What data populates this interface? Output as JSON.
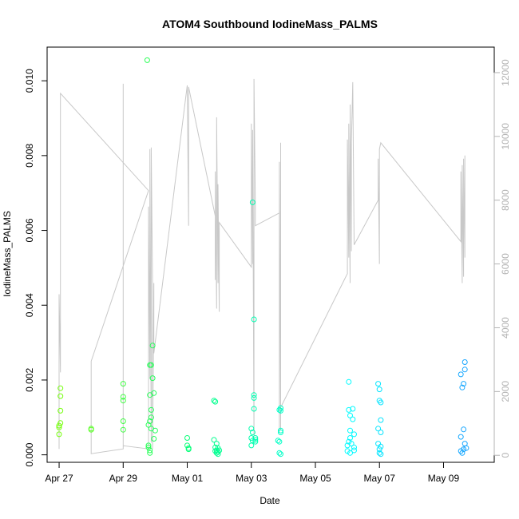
{
  "chart_data": {
    "type": "scatter",
    "title": "ATOM4 Southbound IodineMass_PALMS",
    "xlabel": "Date",
    "ylabel": "IodineMass_PALMS",
    "xlim": [
      "2017-04-26T15:00",
      "2017-05-10T14:00"
    ],
    "ylim": [
      -0.0002,
      0.0109
    ],
    "x_ticks": [
      "Apr 27",
      "Apr 29",
      "May 01",
      "May 03",
      "May 05",
      "May 07",
      "May 09"
    ],
    "y_ticks": [
      "0.000",
      "0.002",
      "0.004",
      "0.006",
      "0.008",
      "0.010"
    ],
    "y2_ticks": [
      "0",
      "2000",
      "4000",
      "6000",
      "8000",
      "10000",
      "12000"
    ],
    "y2lim": [
      -220,
      12800
    ],
    "y2_color": "#b3b3b3",
    "series": [
      {
        "marker": "open-circle",
        "color_gradient": [
          "#7FFF00",
          "#00FF7F",
          "#00FFFF",
          "#1E90FF"
        ],
        "points": [
          [
            "2017-04-27T00:00",
            0.00055
          ],
          [
            "2017-04-27T00:00",
            0.00073
          ],
          [
            "2017-04-27T00:00",
            0.00078
          ],
          [
            "2017-04-27T01:00",
            0.00085
          ],
          [
            "2017-04-27T01:00",
            0.00118
          ],
          [
            "2017-04-27T01:00",
            0.00157
          ],
          [
            "2017-04-27T01:00",
            0.00178
          ],
          [
            "2017-04-28T00:00",
            0.00067
          ],
          [
            "2017-04-28T00:00",
            0.0007
          ],
          [
            "2017-04-29T00:00",
            0.00067
          ],
          [
            "2017-04-29T00:00",
            0.0009
          ],
          [
            "2017-04-29T00:00",
            0.00145
          ],
          [
            "2017-04-29T00:00",
            0.00155
          ],
          [
            "2017-04-29T00:00",
            0.0019
          ],
          [
            "2017-04-29T19:00",
            0.0002
          ],
          [
            "2017-04-29T19:00",
            0.00025
          ],
          [
            "2017-04-29T19:00",
            0.0008
          ],
          [
            "2017-04-29T20:00",
            0.0009
          ],
          [
            "2017-04-29T20:00",
            0.00012
          ],
          [
            "2017-04-29T20:00",
            5e-05
          ],
          [
            "2017-04-29T20:00",
            0.0016
          ],
          [
            "2017-04-29T20:00",
            0.0024
          ],
          [
            "2017-04-29T21:00",
            0.0012
          ],
          [
            "2017-04-29T21:00",
            0.001
          ],
          [
            "2017-04-29T21:00",
            0.0007
          ],
          [
            "2017-04-29T21:00",
            0.0024
          ],
          [
            "2017-04-29T22:00",
            0.00205
          ],
          [
            "2017-04-29T22:00",
            0.00292
          ],
          [
            "2017-04-29T23:00",
            0.00165
          ],
          [
            "2017-04-29T23:00",
            0.00043
          ],
          [
            "2017-04-29T18:00",
            0.01055
          ],
          [
            "2017-04-30T00:00",
            0.00065
          ],
          [
            "2017-05-01T00:00",
            0.00045
          ],
          [
            "2017-05-01T00:00",
            0.00025
          ],
          [
            "2017-05-01T01:00",
            0.00018
          ],
          [
            "2017-05-01T01:00",
            0.00015
          ],
          [
            "2017-05-01T20:00",
            0.0004
          ],
          [
            "2017-05-01T20:00",
            0.00145
          ],
          [
            "2017-05-01T21:00",
            0.00142
          ],
          [
            "2017-05-01T21:00",
            0.0002
          ],
          [
            "2017-05-01T21:00",
            0.0001
          ],
          [
            "2017-05-01T22:00",
            5e-05
          ],
          [
            "2017-05-01T22:00",
            0.00012
          ],
          [
            "2017-05-01T22:00",
            0.0003
          ],
          [
            "2017-05-01T23:00",
            8e-05
          ],
          [
            "2017-05-01T23:00",
            0.00018
          ],
          [
            "2017-05-01T23:00",
            2e-05
          ],
          [
            "2017-05-02T00:00",
            0.00012
          ],
          [
            "2017-05-03T00:00",
            0.0007
          ],
          [
            "2017-05-03T00:00",
            0.00045
          ],
          [
            "2017-05-03T00:00",
            0.00025
          ],
          [
            "2017-05-03T01:00",
            0.0006
          ],
          [
            "2017-05-03T01:00",
            0.00038
          ],
          [
            "2017-05-03T01:00",
            0.00675
          ],
          [
            "2017-05-03T02:00",
            0.00362
          ],
          [
            "2017-05-03T02:00",
            0.0016
          ],
          [
            "2017-05-03T02:00",
            0.00152
          ],
          [
            "2017-05-03T02:00",
            0.00123
          ],
          [
            "2017-05-03T03:00",
            0.00045
          ],
          [
            "2017-05-03T03:00",
            0.0004
          ],
          [
            "2017-05-03T03:00",
            0.00035
          ],
          [
            "2017-05-03T20:00",
            0.00038
          ],
          [
            "2017-05-03T21:00",
            0.00035
          ],
          [
            "2017-05-03T21:00",
            0.0012
          ],
          [
            "2017-05-03T22:00",
            0.00118
          ],
          [
            "2017-05-03T22:00",
            0.00125
          ],
          [
            "2017-05-03T22:00",
            0.0006
          ],
          [
            "2017-05-03T22:00",
            0.00065
          ],
          [
            "2017-05-03T21:00",
            5e-05
          ],
          [
            "2017-05-03T22:00",
            2e-05
          ],
          [
            "2017-05-06T00:00",
            0.0001
          ],
          [
            "2017-05-06T00:00",
            0.00025
          ],
          [
            "2017-05-06T01:00",
            0.00035
          ],
          [
            "2017-05-06T01:00",
            0.0012
          ],
          [
            "2017-05-06T01:00",
            0.00195
          ],
          [
            "2017-05-06T02:00",
            0.00105
          ],
          [
            "2017-05-06T02:00",
            0.00065
          ],
          [
            "2017-05-06T02:00",
            0.00045
          ],
          [
            "2017-05-06T02:00",
            5e-05
          ],
          [
            "2017-05-06T03:00",
            0.0003
          ],
          [
            "2017-05-06T04:00",
            0.00095
          ],
          [
            "2017-05-06T04:00",
            0.00123
          ],
          [
            "2017-05-06T05:00",
            0.00055
          ],
          [
            "2017-05-06T05:00",
            0.0002
          ],
          [
            "2017-05-06T05:00",
            0.00012
          ],
          [
            "2017-05-06T23:00",
            0.0007
          ],
          [
            "2017-05-06T23:00",
            0.0003
          ],
          [
            "2017-05-06T23:00",
            0.0019
          ],
          [
            "2017-05-07T00:00",
            0.00145
          ],
          [
            "2017-05-07T00:00",
            0.00175
          ],
          [
            "2017-05-07T00:00",
            0.00015
          ],
          [
            "2017-05-07T00:00",
            5e-05
          ],
          [
            "2017-05-07T01:00",
            0.0014
          ],
          [
            "2017-05-07T01:00",
            0.00093
          ],
          [
            "2017-05-07T01:00",
            0.0006
          ],
          [
            "2017-05-07T01:00",
            0.00022
          ],
          [
            "2017-05-07T01:00",
            2e-05
          ],
          [
            "2017-05-09T13:00",
            0.00215
          ],
          [
            "2017-05-09T13:00",
            0.00048
          ],
          [
            "2017-05-09T13:00",
            0.0001
          ],
          [
            "2017-05-09T14:00",
            0.0018
          ],
          [
            "2017-05-09T14:00",
            5e-05
          ],
          [
            "2017-05-09T15:00",
            0.0019
          ],
          [
            "2017-05-09T15:00",
            0.00068
          ],
          [
            "2017-05-09T15:00",
            0.00015
          ],
          [
            "2017-05-09T16:00",
            0.00248
          ],
          [
            "2017-05-09T16:00",
            0.00228
          ],
          [
            "2017-05-09T16:00",
            0.0003
          ],
          [
            "2017-05-09T17:00",
            0.00018
          ]
        ]
      },
      {
        "axis": "right",
        "line": "gray",
        "color": "#c8c8c8",
        "points": [
          [
            "2017-04-27T00:00",
            200
          ],
          [
            "2017-04-27T00:00",
            5050
          ],
          [
            "2017-04-27T01:00",
            2600
          ],
          [
            "2017-04-27T01:00",
            11350
          ],
          [
            "2017-04-29T19:00",
            8300
          ],
          [
            "2017-04-28T00:00",
            2950
          ],
          [
            "2017-04-28T00:00",
            220
          ],
          [
            "2017-04-28T00:00",
            50
          ],
          [
            "2017-04-29T00:00",
            200
          ],
          [
            "2017-04-29T00:00",
            11650
          ],
          [
            "2017-04-29T00:00",
            300
          ],
          [
            "2017-04-29T19:00",
            200
          ],
          [
            "2017-04-29T19:00",
            7800
          ],
          [
            "2017-04-29T20:00",
            2400
          ],
          [
            "2017-04-29T20:00",
            9600
          ],
          [
            "2017-04-29T21:00",
            400
          ],
          [
            "2017-04-29T21:00",
            9650
          ],
          [
            "2017-04-29T22:00",
            5300
          ],
          [
            "2017-04-29T22:00",
            200
          ],
          [
            "2017-04-29T23:00",
            5400
          ],
          [
            "2017-04-29T23:00",
            3200
          ],
          [
            "2017-05-01T00:00",
            11600
          ],
          [
            "2017-05-01T01:00",
            7200
          ],
          [
            "2017-05-01T01:00",
            11550
          ],
          [
            "2017-05-01T21:00",
            7500
          ],
          [
            "2017-05-01T21:00",
            5500
          ],
          [
            "2017-05-01T21:00",
            8900
          ],
          [
            "2017-05-01T22:00",
            4600
          ],
          [
            "2017-05-01T22:00",
            10600
          ],
          [
            "2017-05-01T23:00",
            5400
          ],
          [
            "2017-05-01T23:00",
            8500
          ],
          [
            "2017-05-02T00:00",
            4500
          ],
          [
            "2017-05-02T00:00",
            7300
          ],
          [
            "2017-05-03T00:00",
            5900
          ],
          [
            "2017-05-03T00:00",
            10400
          ],
          [
            "2017-05-03T01:00",
            6000
          ],
          [
            "2017-05-03T01:00",
            10200
          ],
          [
            "2017-05-03T02:00",
            600
          ],
          [
            "2017-05-03T02:00",
            11800
          ],
          [
            "2017-05-03T03:00",
            7800
          ],
          [
            "2017-05-03T03:00",
            7200
          ],
          [
            "2017-05-03T21:00",
            7600
          ],
          [
            "2017-05-03T21:00",
            700
          ],
          [
            "2017-05-03T21:00",
            9200
          ],
          [
            "2017-05-03T22:00",
            800
          ],
          [
            "2017-05-03T22:00",
            9800
          ],
          [
            "2017-05-03T22:00",
            1500
          ],
          [
            "2017-05-06T00:00",
            5700
          ],
          [
            "2017-05-06T00:00",
            9900
          ],
          [
            "2017-05-06T01:00",
            6200
          ],
          [
            "2017-05-06T01:00",
            10400
          ],
          [
            "2017-05-06T02:00",
            5400
          ],
          [
            "2017-05-06T02:00",
            11000
          ],
          [
            "2017-05-06T03:00",
            6400
          ],
          [
            "2017-05-06T03:00",
            9800
          ],
          [
            "2017-05-06T04:00",
            11700
          ],
          [
            "2017-05-06T05:00",
            6600
          ],
          [
            "2017-05-06T23:00",
            8000
          ],
          [
            "2017-05-06T23:00",
            9300
          ],
          [
            "2017-05-07T00:00",
            6000
          ],
          [
            "2017-05-07T00:00",
            9600
          ],
          [
            "2017-05-07T01:00",
            9800
          ],
          [
            "2017-05-09T13:00",
            6700
          ],
          [
            "2017-05-09T13:00",
            8900
          ],
          [
            "2017-05-09T14:00",
            5400
          ],
          [
            "2017-05-09T14:00",
            9100
          ],
          [
            "2017-05-09T15:00",
            5600
          ],
          [
            "2017-05-09T15:00",
            9300
          ],
          [
            "2017-05-09T16:00",
            6200
          ],
          [
            "2017-05-09T16:00",
            9400
          ]
        ]
      }
    ]
  }
}
